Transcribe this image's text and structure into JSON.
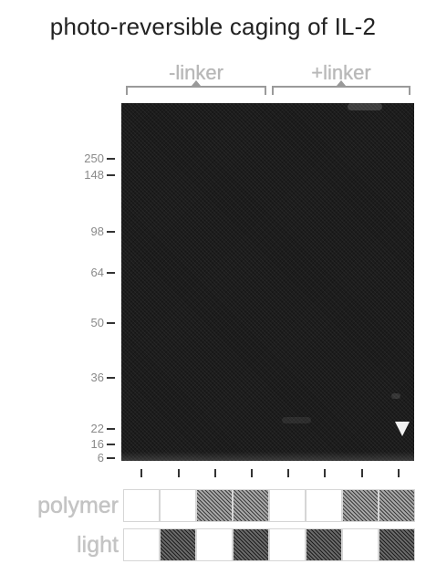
{
  "title": "photo-reversible caging of IL-2",
  "groups": [
    {
      "label": "-linker"
    },
    {
      "label": "+linker"
    }
  ],
  "markers": [
    {
      "mw": "250"
    },
    {
      "mw": "148"
    },
    {
      "mw": "98"
    },
    {
      "mw": "64"
    },
    {
      "mw": "50"
    },
    {
      "mw": "36"
    },
    {
      "mw": "22"
    },
    {
      "mw": "16"
    },
    {
      "mw": "6"
    }
  ],
  "rows": [
    {
      "label": "polymer",
      "states": [
        false,
        false,
        true,
        true,
        false,
        false,
        true,
        true
      ]
    },
    {
      "label": "light",
      "states": [
        false,
        true,
        false,
        true,
        false,
        true,
        false,
        true
      ]
    }
  ],
  "colors": {
    "gel": "#1c1c1c",
    "filled_cell": "#7a7a7a",
    "label_gray": "#c4c4c4",
    "arrowhead": "#f2f2f2"
  },
  "icons": {
    "arrowhead": "triangle-down-icon"
  }
}
